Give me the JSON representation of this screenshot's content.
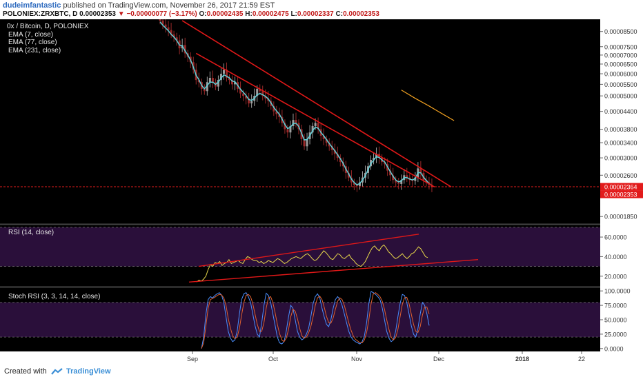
{
  "header": {
    "author": "dudeimfantastic",
    "published_text": "published on TradingView.com, November 26, 2017 21:59 EST",
    "symbol": "POLONIEX:ZRXBTC, D",
    "last": "0.00002353",
    "change": "−0.00000077 (−3.17%)",
    "open_label": "O:",
    "open": "0.00002435",
    "high_label": "H:",
    "high": "0.00002475",
    "low_label": "L:",
    "low": "0.00002337",
    "close_label": "C:",
    "close": "0.00002353"
  },
  "legend": {
    "pair": "0x / Bitcoin, D, POLONIEX",
    "ema1": "EMA (7, close)",
    "ema2": "EMA (77, close)",
    "ema3": "EMA (231, close)"
  },
  "footer": {
    "created": "Created with",
    "brand": "TradingView"
  },
  "colors": {
    "background": "#000000",
    "axis_bg": "#ffffff",
    "up": "#9e9e9e",
    "down": "#9a2a2a",
    "ema7": "#5fd0d8",
    "ema77": "#f0a020",
    "trendline": "#e01818",
    "rsi_line": "#e8d84a",
    "stoch_k": "#4a8fff",
    "stoch_d": "#e06030",
    "price_badge": "#e21b1b",
    "oscillator_band": "#2a0f3a"
  },
  "chart_data": [
    {
      "type": "candlestick",
      "title": "0x / Bitcoin, D, POLONIEX",
      "y_scale": "log",
      "y_ticks": [
        "0.00008500",
        "0.00007500",
        "0.00007000",
        "0.00006500",
        "0.00006000",
        "0.00005500",
        "0.00005000",
        "0.00004400",
        "0.00003800",
        "0.00003400",
        "0.00003000",
        "0.00002600",
        "0.00002364",
        "0.00002353",
        "0.00001850"
      ],
      "x_ticks": [
        "Sep",
        "Oct",
        "Nov",
        "Dec",
        "2018",
        "22"
      ],
      "last_price": "0.00002353",
      "marked_level": "0.00002364",
      "candles_close": [
        9.3e-05,
        9e-05,
        8.8e-05,
        8.6e-05,
        8.3e-05,
        8.1e-05,
        7.9e-05,
        7.4e-05,
        7.6e-05,
        7.1e-05,
        6.9e-05,
        6.6e-05,
        6.2e-05,
        5.7e-05,
        5.6e-05,
        5.3e-05,
        5.2e-05,
        5.6e-05,
        5.8e-05,
        5.6e-05,
        5.4e-05,
        5.7e-05,
        6e-05,
        6.2e-05,
        5.8e-05,
        5.7e-05,
        5.5e-05,
        5.6e-05,
        5.3e-05,
        5.1e-05,
        5e-05,
        4.9e-05,
        4.7e-05,
        4.8e-05,
        5e-05,
        5.3e-05,
        5.2e-05,
        5e-05,
        4.9e-05,
        4.8e-05,
        4.6e-05,
        4.4e-05,
        4.3e-05,
        4.2e-05,
        4e-05,
        3.8e-05,
        3.7e-05,
        3.9e-05,
        4.1e-05,
        4e-05,
        3.8e-05,
        3.5e-05,
        3.3e-05,
        3.5e-05,
        3.7e-05,
        3.9e-05,
        4e-05,
        3.8e-05,
        3.6e-05,
        3.5e-05,
        3.4e-05,
        3.3e-05,
        3.2e-05,
        3.1e-05,
        3e-05,
        2.9e-05,
        2.8e-05,
        2.65e-05,
        2.55e-05,
        2.45e-05,
        2.4e-05,
        2.38e-05,
        2.45e-05,
        2.55e-05,
        2.65e-05,
        2.8e-05,
        2.95e-05,
        3e-05,
        3.1e-05,
        3e-05,
        2.9e-05,
        2.85e-05,
        2.7e-05,
        2.6e-05,
        2.5e-05,
        2.45e-05,
        2.42e-05,
        2.5e-05,
        2.6e-05,
        2.55e-05,
        2.5e-05,
        2.48e-05,
        2.55e-05,
        2.75e-05,
        2.65e-05,
        2.5e-05,
        2.45e-05,
        2.4e-05,
        2.36e-05
      ],
      "ema7": [
        9.2e-05,
        8.95e-05,
        8.75e-05,
        8.55e-05,
        8.3e-05,
        8.12e-05,
        7.9e-05,
        7.6e-05,
        7.55e-05,
        7.25e-05,
        7e-05,
        6.72e-05,
        6.35e-05,
        5.92e-05,
        5.72e-05,
        5.45e-05,
        5.3e-05,
        5.45e-05,
        5.6e-05,
        5.6e-05,
        5.5e-05,
        5.6e-05,
        5.78e-05,
        5.95e-05,
        5.88e-05,
        5.8e-05,
        5.65e-05,
        5.62e-05,
        5.45e-05,
        5.28e-05,
        5.15e-05,
        5.02e-05,
        4.85e-05,
        4.82e-05,
        4.9e-05,
        5.05e-05,
        5.1e-05,
        5.05e-05,
        4.98e-05,
        4.88e-05,
        4.72e-05,
        4.55e-05,
        4.42e-05,
        4.3e-05,
        4.13e-05,
        3.95e-05,
        3.82e-05,
        3.86e-05,
        3.98e-05,
        3.99e-05,
        3.89e-05,
        3.68e-05,
        3.48e-05,
        3.49e-05,
        3.6e-05,
        3.75e-05,
        3.87e-05,
        3.83e-05,
        3.7e-05,
        3.6e-05,
        3.49e-05,
        3.38e-05,
        3.28e-05,
        3.18e-05,
        3.08e-05,
        2.98e-05,
        2.87e-05,
        2.74e-05,
        2.63e-05,
        2.52e-05,
        2.45e-05,
        2.4e-05,
        2.43e-05,
        2.5e-05,
        2.59e-05,
        2.72e-05,
        2.86e-05,
        2.94e-05,
        3.03e-05,
        3.01e-05,
        2.95e-05,
        2.9e-05,
        2.79e-05,
        2.68e-05,
        2.58e-05,
        2.5e-05,
        2.46e-05,
        2.48e-05,
        2.55e-05,
        2.55e-05,
        2.52e-05,
        2.5e-05,
        2.53e-05,
        2.66e-05,
        2.65e-05,
        2.56e-05,
        2.49e-05,
        2.43e-05,
        2.39e-05
      ],
      "ema77": [
        {
          "x": 87,
          "y": 5.25e-05
        },
        {
          "x": 92,
          "y": 4.9e-05
        },
        {
          "x": 97,
          "y": 4.6e-05
        },
        {
          "x": 102,
          "y": 4.3e-05
        },
        {
          "x": 106,
          "y": 4.08e-05
        }
      ],
      "trendlines": [
        {
          "from": {
            "x": 8,
            "y": 9.3e-05
          },
          "to": {
            "x": 105,
            "y": 2.36e-05
          }
        },
        {
          "from": {
            "x": 13,
            "y": 7.1e-05
          },
          "to": {
            "x": 99,
            "y": 2.36e-05
          }
        }
      ]
    },
    {
      "type": "line",
      "title": "RSI (14, close)",
      "y_ticks": [
        "60.0000",
        "40.0000",
        "20.0000"
      ],
      "ylim": [
        10,
        72
      ],
      "bands": [
        70,
        30
      ],
      "values": [
        14,
        16,
        15,
        17,
        20,
        27,
        32,
        30,
        34,
        33,
        35,
        31,
        33,
        34,
        37,
        33,
        34,
        35,
        36,
        34,
        33,
        37,
        40,
        39,
        37,
        36,
        36,
        34,
        35,
        33,
        34,
        36,
        35,
        34,
        36,
        38,
        37,
        35,
        33,
        34,
        36,
        38,
        39,
        40,
        39,
        38,
        40,
        42,
        43,
        41,
        38,
        36,
        37,
        40,
        43,
        46,
        44,
        41,
        38,
        37,
        40,
        43,
        42,
        39,
        38,
        40,
        42,
        38,
        36,
        33,
        31,
        30,
        32,
        35,
        40,
        45,
        49,
        51,
        48,
        46,
        50,
        52,
        49,
        45,
        43,
        40,
        38,
        39,
        41,
        43,
        40,
        38,
        40,
        43,
        44,
        47,
        50,
        48,
        44,
        40,
        39
      ]
    },
    {
      "type": "line",
      "title": "Stoch RSI (3, 3, 14, 14, close)",
      "y_ticks": [
        "100.0000",
        "75.0000",
        "50.0000",
        "25.0000",
        "0.0000"
      ],
      "ylim": [
        -5,
        105
      ],
      "bands": [
        80,
        20
      ],
      "series": [
        {
          "name": "K",
          "values": [
            0,
            20,
            60,
            85,
            90,
            88,
            92,
            95,
            97,
            93,
            80,
            55,
            30,
            18,
            12,
            15,
            30,
            60,
            85,
            95,
            97,
            90,
            80,
            60,
            40,
            25,
            20,
            45,
            75,
            96,
            92,
            80,
            60,
            40,
            20,
            10,
            8,
            12,
            30,
            55,
            75,
            70,
            50,
            30,
            20,
            15,
            18,
            25,
            35,
            55,
            78,
            90,
            95,
            88,
            70,
            55,
            42,
            38,
            50,
            70,
            85,
            90,
            85,
            75,
            60,
            45,
            30,
            20,
            15,
            12,
            10,
            8,
            12,
            22,
            45,
            78,
            99,
            97,
            94,
            90,
            85,
            70,
            50,
            30,
            18,
            12,
            15,
            30,
            55,
            78,
            94,
            92,
            80,
            60,
            40,
            25,
            20,
            35,
            60,
            80,
            75,
            60,
            40
          ]
        },
        {
          "name": "D",
          "values": [
            0,
            10,
            40,
            70,
            85,
            87,
            89,
            92,
            94,
            93,
            88,
            75,
            52,
            35,
            22,
            17,
            20,
            35,
            58,
            80,
            92,
            94,
            90,
            78,
            60,
            42,
            30,
            30,
            45,
            70,
            88,
            90,
            80,
            62,
            42,
            26,
            15,
            12,
            18,
            33,
            55,
            68,
            65,
            52,
            35,
            22,
            18,
            20,
            27,
            38,
            55,
            75,
            88,
            91,
            85,
            72,
            56,
            45,
            44,
            53,
            68,
            82,
            88,
            85,
            75,
            60,
            45,
            32,
            22,
            16,
            13,
            10,
            10,
            15,
            28,
            50,
            78,
            95,
            97,
            94,
            90,
            82,
            68,
            50,
            33,
            20,
            15,
            19,
            33,
            55,
            77,
            88,
            89,
            78,
            60,
            42,
            30,
            28,
            38,
            58,
            72,
            72,
            60
          ]
        }
      ]
    }
  ]
}
